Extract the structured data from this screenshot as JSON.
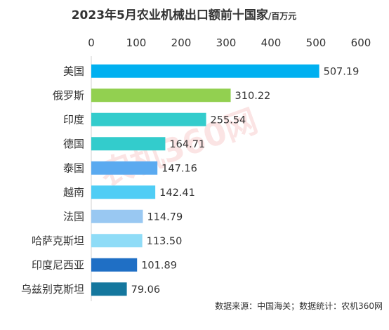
{
  "title": "2023年5月农业机械出口额前十国家",
  "unit": "/百万元",
  "source": "数据来源：中国海关；数据统计：农机360网",
  "watermark": "农机360网",
  "chart_data": {
    "type": "bar",
    "orientation": "horizontal",
    "title": "2023年5月农业机械出口额前十国家",
    "unit": "/百万元",
    "categories": [
      "美国",
      "俄罗斯",
      "印度",
      "德国",
      "泰国",
      "越南",
      "法国",
      "哈萨克斯坦",
      "印度尼西亚",
      "乌兹别克斯坦"
    ],
    "values": [
      507.19,
      310.22,
      255.54,
      164.71,
      147.16,
      142.41,
      114.79,
      113.5,
      101.89,
      79.06
    ],
    "value_labels": [
      "507.19",
      "310.22",
      "255.54",
      "164.71",
      "147.16",
      "142.41",
      "114.79",
      "113.50",
      "101.89",
      "79.06"
    ],
    "colors": [
      "#00b0f0",
      "#92d050",
      "#33cccc",
      "#33cccc",
      "#5aaaf0",
      "#4fcdf5",
      "#99c8f2",
      "#8fdcf7",
      "#1f6fc5",
      "#14779e"
    ],
    "xlim": [
      0,
      600
    ],
    "xticks": [
      "0",
      "100",
      "200",
      "300",
      "400",
      "500",
      "600"
    ],
    "axis_position": "top",
    "grid": false
  }
}
